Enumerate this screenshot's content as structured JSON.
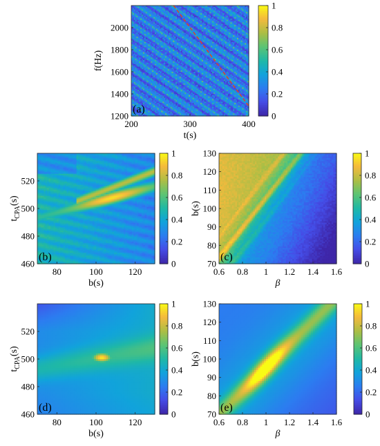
{
  "chart_data": [
    {
      "panel": "(a)",
      "type": "heatmap",
      "xlabel": "t(s)",
      "ylabel": "f(Hz)",
      "xlim": [
        200,
        400
      ],
      "ylim": [
        1200,
        2200
      ],
      "xticks": [
        200,
        300,
        400
      ],
      "yticks": [
        1200,
        1400,
        1600,
        1800,
        2000
      ],
      "zlim": [
        0,
        1
      ],
      "colorbar_ticks": [
        0,
        0.2,
        0.4,
        0.6,
        0.8,
        1
      ],
      "colormap": "parula",
      "description_lines": "diagonal striations",
      "overlay": {
        "style": "dashed",
        "color": "#d9452b",
        "x": [
          272,
          400
        ],
        "y": [
          2200,
          1290
        ]
      }
    },
    {
      "panel": "(b)",
      "type": "heatmap",
      "xlabel": "b(s)",
      "ylabel": "t",
      "ylabel_sub": "CPA",
      "ylabel_suffix": "(s)",
      "xlim": [
        70,
        130
      ],
      "ylim": [
        460,
        540
      ],
      "xticks": [
        80,
        100,
        120
      ],
      "yticks": [
        460,
        480,
        500,
        520
      ],
      "zlim": [
        0,
        1
      ],
      "colorbar_ticks": [
        0,
        0.2,
        0.4,
        0.6,
        0.8,
        1
      ],
      "peak": {
        "x": 110,
        "y": 505
      }
    },
    {
      "panel": "(c)",
      "type": "heatmap",
      "xlabel": "β",
      "ylabel": "b(s)",
      "xlim": [
        0.6,
        1.6
      ],
      "ylim": [
        70,
        130
      ],
      "xticks": [
        0.6,
        0.8,
        1,
        1.2,
        1.4,
        1.6
      ],
      "yticks": [
        70,
        80,
        90,
        100,
        110,
        120,
        130
      ],
      "zlim": [
        0,
        1
      ],
      "colorbar_ticks": [
        0,
        0.2,
        0.4,
        0.6,
        0.8,
        1
      ]
    },
    {
      "panel": "(d)",
      "type": "heatmap",
      "xlabel": "b(s)",
      "ylabel": "t",
      "ylabel_sub": "CPA",
      "ylabel_suffix": "(s)",
      "xlim": [
        70,
        130
      ],
      "ylim": [
        460,
        540
      ],
      "xticks": [
        80,
        100,
        120
      ],
      "yticks": [
        460,
        480,
        500,
        520
      ],
      "zlim": [
        0,
        1
      ],
      "colorbar_ticks": [
        0,
        0.2,
        0.4,
        0.6,
        0.8,
        1
      ],
      "peak": {
        "x": 103,
        "y": 501
      }
    },
    {
      "panel": "(e)",
      "type": "heatmap",
      "xlabel": "β",
      "ylabel": "b(s)",
      "xlim": [
        0.6,
        1.6
      ],
      "ylim": [
        70,
        130
      ],
      "xticks": [
        0.6,
        0.8,
        1,
        1.2,
        1.4,
        1.6
      ],
      "yticks": [
        70,
        80,
        90,
        100,
        110,
        120,
        130
      ],
      "zlim": [
        0,
        1
      ],
      "colorbar_ticks": [
        0,
        0.2,
        0.4,
        0.6,
        0.8,
        1
      ],
      "peak": {
        "x": 1.0,
        "y": 101
      }
    }
  ]
}
